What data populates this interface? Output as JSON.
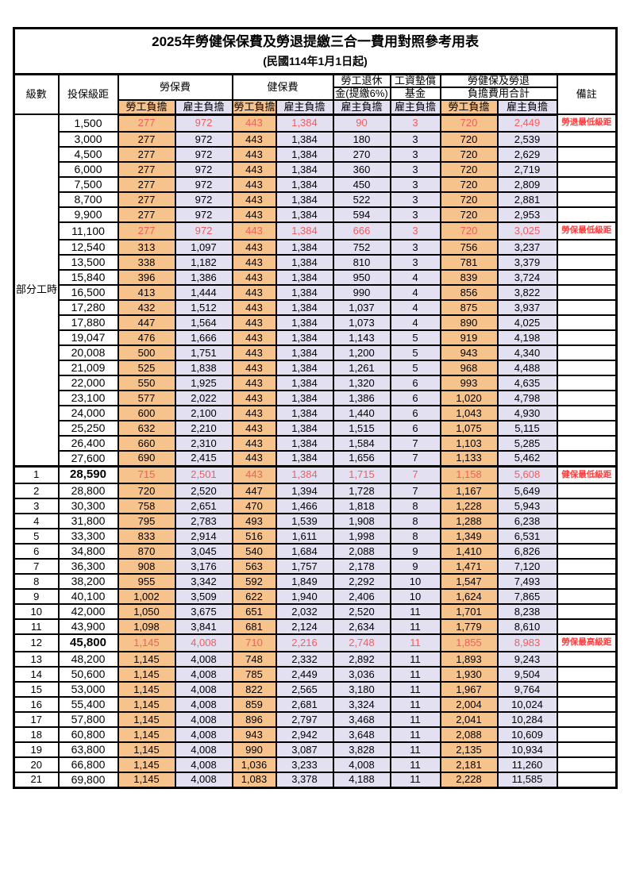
{
  "title": "2025年勞健保保費及勞退提繳三合一費用對照參考用表",
  "subtitle": "(民國114年1月1日起)",
  "header": {
    "level": "級數",
    "bracket": "投保級距",
    "labor_insurance": "勞保費",
    "health_insurance": "健保費",
    "pension_line1": "勞工退休",
    "pension_line2": "金(提繳6%)",
    "wage_fund_line1": "工資墊償",
    "wage_fund_line2": "基金",
    "total_line1": "勞健保及勞退",
    "total_line2": "負擔費用合計",
    "remark": "備註",
    "employee": "勞工負擔",
    "employer": "雇主負擔"
  },
  "part_time_label": "部分工時",
  "colors": {
    "employee_bg": "#F6C38D",
    "employer_bg": "#E2E0F1",
    "highlight_text": "#F15E5E",
    "remark_text": "#FA3B3B"
  },
  "table": {
    "rows": [
      {
        "level": "",
        "bracket": "1,500",
        "li_emp": "277",
        "li_er": "972",
        "hi_emp": "443",
        "hi_er": "1,384",
        "pension": "90",
        "fund": "3",
        "tot_emp": "720",
        "tot_er": "2,449",
        "remark": "勞退最低級距",
        "highlight": true
      },
      {
        "level": "",
        "bracket": "3,000",
        "li_emp": "277",
        "li_er": "972",
        "hi_emp": "443",
        "hi_er": "1,384",
        "pension": "180",
        "fund": "3",
        "tot_emp": "720",
        "tot_er": "2,539",
        "remark": "",
        "highlight": false
      },
      {
        "level": "",
        "bracket": "4,500",
        "li_emp": "277",
        "li_er": "972",
        "hi_emp": "443",
        "hi_er": "1,384",
        "pension": "270",
        "fund": "3",
        "tot_emp": "720",
        "tot_er": "2,629",
        "remark": "",
        "highlight": false
      },
      {
        "level": "",
        "bracket": "6,000",
        "li_emp": "277",
        "li_er": "972",
        "hi_emp": "443",
        "hi_er": "1,384",
        "pension": "360",
        "fund": "3",
        "tot_emp": "720",
        "tot_er": "2,719",
        "remark": "",
        "highlight": false
      },
      {
        "level": "",
        "bracket": "7,500",
        "li_emp": "277",
        "li_er": "972",
        "hi_emp": "443",
        "hi_er": "1,384",
        "pension": "450",
        "fund": "3",
        "tot_emp": "720",
        "tot_er": "2,809",
        "remark": "",
        "highlight": false
      },
      {
        "level": "",
        "bracket": "8,700",
        "li_emp": "277",
        "li_er": "972",
        "hi_emp": "443",
        "hi_er": "1,384",
        "pension": "522",
        "fund": "3",
        "tot_emp": "720",
        "tot_er": "2,881",
        "remark": "",
        "highlight": false
      },
      {
        "level": "",
        "bracket": "9,900",
        "li_emp": "277",
        "li_er": "972",
        "hi_emp": "443",
        "hi_er": "1,384",
        "pension": "594",
        "fund": "3",
        "tot_emp": "720",
        "tot_er": "2,953",
        "remark": "",
        "highlight": false
      },
      {
        "level": "",
        "bracket": "11,100",
        "li_emp": "277",
        "li_er": "972",
        "hi_emp": "443",
        "hi_er": "1,384",
        "pension": "666",
        "fund": "3",
        "tot_emp": "720",
        "tot_er": "3,025",
        "remark": "勞保最低級距",
        "highlight": true
      },
      {
        "level": "",
        "bracket": "12,540",
        "li_emp": "313",
        "li_er": "1,097",
        "hi_emp": "443",
        "hi_er": "1,384",
        "pension": "752",
        "fund": "3",
        "tot_emp": "756",
        "tot_er": "3,237",
        "remark": "",
        "highlight": false
      },
      {
        "level": "",
        "bracket": "13,500",
        "li_emp": "338",
        "li_er": "1,182",
        "hi_emp": "443",
        "hi_er": "1,384",
        "pension": "810",
        "fund": "3",
        "tot_emp": "781",
        "tot_er": "3,379",
        "remark": "",
        "highlight": false
      },
      {
        "level": "",
        "bracket": "15,840",
        "li_emp": "396",
        "li_er": "1,386",
        "hi_emp": "443",
        "hi_er": "1,384",
        "pension": "950",
        "fund": "4",
        "tot_emp": "839",
        "tot_er": "3,724",
        "remark": "",
        "highlight": false
      },
      {
        "level": "",
        "bracket": "16,500",
        "li_emp": "413",
        "li_er": "1,444",
        "hi_emp": "443",
        "hi_er": "1,384",
        "pension": "990",
        "fund": "4",
        "tot_emp": "856",
        "tot_er": "3,822",
        "remark": "",
        "highlight": false
      },
      {
        "level": "",
        "bracket": "17,280",
        "li_emp": "432",
        "li_er": "1,512",
        "hi_emp": "443",
        "hi_er": "1,384",
        "pension": "1,037",
        "fund": "4",
        "tot_emp": "875",
        "tot_er": "3,937",
        "remark": "",
        "highlight": false
      },
      {
        "level": "",
        "bracket": "17,880",
        "li_emp": "447",
        "li_er": "1,564",
        "hi_emp": "443",
        "hi_er": "1,384",
        "pension": "1,073",
        "fund": "4",
        "tot_emp": "890",
        "tot_er": "4,025",
        "remark": "",
        "highlight": false
      },
      {
        "level": "",
        "bracket": "19,047",
        "li_emp": "476",
        "li_er": "1,666",
        "hi_emp": "443",
        "hi_er": "1,384",
        "pension": "1,143",
        "fund": "5",
        "tot_emp": "919",
        "tot_er": "4,198",
        "remark": "",
        "highlight": false
      },
      {
        "level": "",
        "bracket": "20,008",
        "li_emp": "500",
        "li_er": "1,751",
        "hi_emp": "443",
        "hi_er": "1,384",
        "pension": "1,200",
        "fund": "5",
        "tot_emp": "943",
        "tot_er": "4,340",
        "remark": "",
        "highlight": false
      },
      {
        "level": "",
        "bracket": "21,009",
        "li_emp": "525",
        "li_er": "1,838",
        "hi_emp": "443",
        "hi_er": "1,384",
        "pension": "1,261",
        "fund": "5",
        "tot_emp": "968",
        "tot_er": "4,488",
        "remark": "",
        "highlight": false
      },
      {
        "level": "",
        "bracket": "22,000",
        "li_emp": "550",
        "li_er": "1,925",
        "hi_emp": "443",
        "hi_er": "1,384",
        "pension": "1,320",
        "fund": "6",
        "tot_emp": "993",
        "tot_er": "4,635",
        "remark": "",
        "highlight": false
      },
      {
        "level": "",
        "bracket": "23,100",
        "li_emp": "577",
        "li_er": "2,022",
        "hi_emp": "443",
        "hi_er": "1,384",
        "pension": "1,386",
        "fund": "6",
        "tot_emp": "1,020",
        "tot_er": "4,798",
        "remark": "",
        "highlight": false
      },
      {
        "level": "",
        "bracket": "24,000",
        "li_emp": "600",
        "li_er": "2,100",
        "hi_emp": "443",
        "hi_er": "1,384",
        "pension": "1,440",
        "fund": "6",
        "tot_emp": "1,043",
        "tot_er": "4,930",
        "remark": "",
        "highlight": false
      },
      {
        "level": "",
        "bracket": "25,250",
        "li_emp": "632",
        "li_er": "2,210",
        "hi_emp": "443",
        "hi_er": "1,384",
        "pension": "1,515",
        "fund": "6",
        "tot_emp": "1,075",
        "tot_er": "5,115",
        "remark": "",
        "highlight": false
      },
      {
        "level": "",
        "bracket": "26,400",
        "li_emp": "660",
        "li_er": "2,310",
        "hi_emp": "443",
        "hi_er": "1,384",
        "pension": "1,584",
        "fund": "7",
        "tot_emp": "1,103",
        "tot_er": "5,285",
        "remark": "",
        "highlight": false
      },
      {
        "level": "",
        "bracket": "27,600",
        "li_emp": "690",
        "li_er": "2,415",
        "hi_emp": "443",
        "hi_er": "1,384",
        "pension": "1,656",
        "fund": "7",
        "tot_emp": "1,133",
        "tot_er": "5,462",
        "remark": "",
        "highlight": false
      },
      {
        "level": "1",
        "bracket": "28,590",
        "li_emp": "715",
        "li_er": "2,501",
        "hi_emp": "443",
        "hi_er": "1,384",
        "pension": "1,715",
        "fund": "7",
        "tot_emp": "1,158",
        "tot_er": "5,608",
        "remark": "健保最低級距",
        "highlight": true
      },
      {
        "level": "2",
        "bracket": "28,800",
        "li_emp": "720",
        "li_er": "2,520",
        "hi_emp": "447",
        "hi_er": "1,394",
        "pension": "1,728",
        "fund": "7",
        "tot_emp": "1,167",
        "tot_er": "5,649",
        "remark": "",
        "highlight": false
      },
      {
        "level": "3",
        "bracket": "30,300",
        "li_emp": "758",
        "li_er": "2,651",
        "hi_emp": "470",
        "hi_er": "1,466",
        "pension": "1,818",
        "fund": "8",
        "tot_emp": "1,228",
        "tot_er": "5,943",
        "remark": "",
        "highlight": false
      },
      {
        "level": "4",
        "bracket": "31,800",
        "li_emp": "795",
        "li_er": "2,783",
        "hi_emp": "493",
        "hi_er": "1,539",
        "pension": "1,908",
        "fund": "8",
        "tot_emp": "1,288",
        "tot_er": "6,238",
        "remark": "",
        "highlight": false
      },
      {
        "level": "5",
        "bracket": "33,300",
        "li_emp": "833",
        "li_er": "2,914",
        "hi_emp": "516",
        "hi_er": "1,611",
        "pension": "1,998",
        "fund": "8",
        "tot_emp": "1,349",
        "tot_er": "6,531",
        "remark": "",
        "highlight": false
      },
      {
        "level": "6",
        "bracket": "34,800",
        "li_emp": "870",
        "li_er": "3,045",
        "hi_emp": "540",
        "hi_er": "1,684",
        "pension": "2,088",
        "fund": "9",
        "tot_emp": "1,410",
        "tot_er": "6,826",
        "remark": "",
        "highlight": false
      },
      {
        "level": "7",
        "bracket": "36,300",
        "li_emp": "908",
        "li_er": "3,176",
        "hi_emp": "563",
        "hi_er": "1,757",
        "pension": "2,178",
        "fund": "9",
        "tot_emp": "1,471",
        "tot_er": "7,120",
        "remark": "",
        "highlight": false
      },
      {
        "level": "8",
        "bracket": "38,200",
        "li_emp": "955",
        "li_er": "3,342",
        "hi_emp": "592",
        "hi_er": "1,849",
        "pension": "2,292",
        "fund": "10",
        "tot_emp": "1,547",
        "tot_er": "7,493",
        "remark": "",
        "highlight": false
      },
      {
        "level": "9",
        "bracket": "40,100",
        "li_emp": "1,002",
        "li_er": "3,509",
        "hi_emp": "622",
        "hi_er": "1,940",
        "pension": "2,406",
        "fund": "10",
        "tot_emp": "1,624",
        "tot_er": "7,865",
        "remark": "",
        "highlight": false
      },
      {
        "level": "10",
        "bracket": "42,000",
        "li_emp": "1,050",
        "li_er": "3,675",
        "hi_emp": "651",
        "hi_er": "2,032",
        "pension": "2,520",
        "fund": "11",
        "tot_emp": "1,701",
        "tot_er": "8,238",
        "remark": "",
        "highlight": false
      },
      {
        "level": "11",
        "bracket": "43,900",
        "li_emp": "1,098",
        "li_er": "3,841",
        "hi_emp": "681",
        "hi_er": "2,124",
        "pension": "2,634",
        "fund": "11",
        "tot_emp": "1,779",
        "tot_er": "8,610",
        "remark": "",
        "highlight": false
      },
      {
        "level": "12",
        "bracket": "45,800",
        "li_emp": "1,145",
        "li_er": "4,008",
        "hi_emp": "710",
        "hi_er": "2,216",
        "pension": "2,748",
        "fund": "11",
        "tot_emp": "1,855",
        "tot_er": "8,983",
        "remark": "勞保最高級距",
        "highlight": true
      },
      {
        "level": "13",
        "bracket": "48,200",
        "li_emp": "1,145",
        "li_er": "4,008",
        "hi_emp": "748",
        "hi_er": "2,332",
        "pension": "2,892",
        "fund": "11",
        "tot_emp": "1,893",
        "tot_er": "9,243",
        "remark": "",
        "highlight": false
      },
      {
        "level": "14",
        "bracket": "50,600",
        "li_emp": "1,145",
        "li_er": "4,008",
        "hi_emp": "785",
        "hi_er": "2,449",
        "pension": "3,036",
        "fund": "11",
        "tot_emp": "1,930",
        "tot_er": "9,504",
        "remark": "",
        "highlight": false
      },
      {
        "level": "15",
        "bracket": "53,000",
        "li_emp": "1,145",
        "li_er": "4,008",
        "hi_emp": "822",
        "hi_er": "2,565",
        "pension": "3,180",
        "fund": "11",
        "tot_emp": "1,967",
        "tot_er": "9,764",
        "remark": "",
        "highlight": false
      },
      {
        "level": "16",
        "bracket": "55,400",
        "li_emp": "1,145",
        "li_er": "4,008",
        "hi_emp": "859",
        "hi_er": "2,681",
        "pension": "3,324",
        "fund": "11",
        "tot_emp": "2,004",
        "tot_er": "10,024",
        "remark": "",
        "highlight": false
      },
      {
        "level": "17",
        "bracket": "57,800",
        "li_emp": "1,145",
        "li_er": "4,008",
        "hi_emp": "896",
        "hi_er": "2,797",
        "pension": "3,468",
        "fund": "11",
        "tot_emp": "2,041",
        "tot_er": "10,284",
        "remark": "",
        "highlight": false
      },
      {
        "level": "18",
        "bracket": "60,800",
        "li_emp": "1,145",
        "li_er": "4,008",
        "hi_emp": "943",
        "hi_er": "2,942",
        "pension": "3,648",
        "fund": "11",
        "tot_emp": "2,088",
        "tot_er": "10,609",
        "remark": "",
        "highlight": false
      },
      {
        "level": "19",
        "bracket": "63,800",
        "li_emp": "1,145",
        "li_er": "4,008",
        "hi_emp": "990",
        "hi_er": "3,087",
        "pension": "3,828",
        "fund": "11",
        "tot_emp": "2,135",
        "tot_er": "10,934",
        "remark": "",
        "highlight": false
      },
      {
        "level": "20",
        "bracket": "66,800",
        "li_emp": "1,145",
        "li_er": "4,008",
        "hi_emp": "1,036",
        "hi_er": "3,233",
        "pension": "4,008",
        "fund": "11",
        "tot_emp": "2,181",
        "tot_er": "11,260",
        "remark": "",
        "highlight": false
      },
      {
        "level": "21",
        "bracket": "69,800",
        "li_emp": "1,145",
        "li_er": "4,008",
        "hi_emp": "1,083",
        "hi_er": "3,378",
        "pension": "4,188",
        "fund": "11",
        "tot_emp": "2,228",
        "tot_er": "11,585",
        "remark": "",
        "highlight": false
      }
    ]
  }
}
